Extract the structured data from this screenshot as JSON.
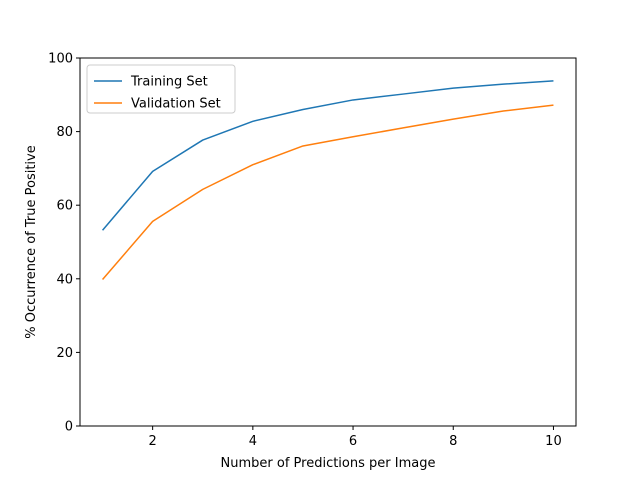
{
  "chart_data": {
    "type": "line",
    "title": "",
    "xlabel": "Number of Predictions per Image",
    "ylabel": "% Occurrence of True Positive",
    "xlim": [
      0.55,
      10.45
    ],
    "ylim": [
      0,
      100
    ],
    "x_ticks": [
      2,
      4,
      6,
      8,
      10
    ],
    "y_ticks": [
      0,
      20,
      40,
      60,
      80,
      100
    ],
    "grid": false,
    "legend_position": "top-left",
    "x": [
      1,
      2,
      3,
      4,
      5,
      6,
      7,
      8,
      9,
      10
    ],
    "series": [
      {
        "name": "Training Set",
        "color": "#1f77b4",
        "values": [
          53.2,
          69.2,
          77.7,
          82.8,
          86.0,
          88.6,
          90.2,
          91.8,
          92.9,
          93.8
        ]
      },
      {
        "name": "Validation Set",
        "color": "#ff7f0e",
        "values": [
          39.8,
          55.6,
          64.3,
          71.0,
          76.1,
          78.6,
          81.0,
          83.4,
          85.6,
          87.2
        ]
      }
    ]
  }
}
